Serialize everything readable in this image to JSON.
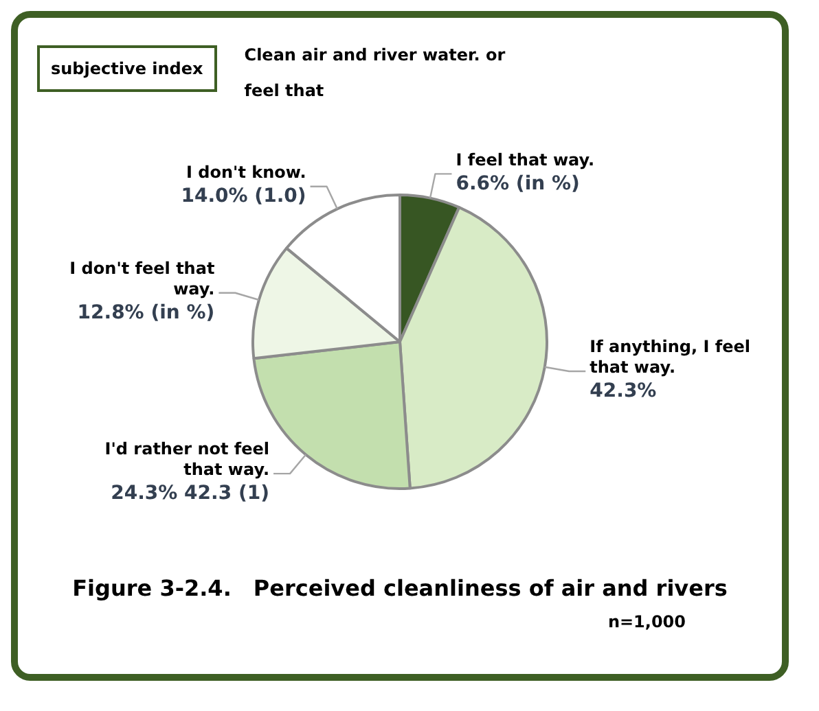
{
  "chart_data": {
    "type": "pie",
    "title": "Figure 3-2.4.　Perceived cleanliness of air and rivers",
    "subtitle": "Clean air and river water. or feel that",
    "annotations": [
      "subjective index",
      "n=1,000"
    ],
    "categories": [
      "I feel that way.",
      "If anything, I feel that way.",
      "I'd rather not feel that way.",
      "I don't feel that way.",
      "I don't know."
    ],
    "values": [
      6.6,
      42.3,
      24.3,
      12.8,
      14.0
    ],
    "colors": [
      "#375623",
      "#d8ebc6",
      "#c3dfae",
      "#eef6e6",
      "#ffffff"
    ],
    "value_labels": [
      "6.6% (in %)",
      "42.3%",
      "24.3% 42.3 (1)",
      "12.8% (in %)",
      "14.0% (1.0)"
    ]
  }
}
